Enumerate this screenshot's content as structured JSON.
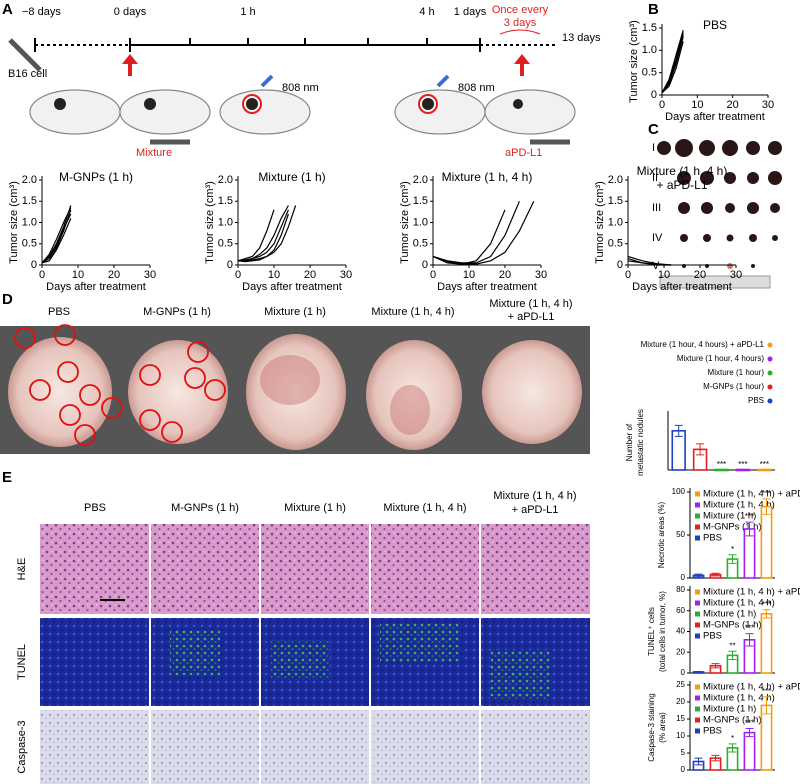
{
  "panels": [
    "A",
    "B",
    "C",
    "D",
    "E"
  ],
  "timeline": {
    "marks": [
      "−8 days",
      "0 days",
      "1 h",
      "4 h",
      "1 days",
      "13 days"
    ],
    "repeat": [
      "Once every",
      "3 days"
    ],
    "cell": "B16 cell",
    "laser": [
      "808 nm",
      "808 nm"
    ],
    "injection": "Mixture",
    "antibody": "aPD-L1"
  },
  "tumor_groups": [
    "I",
    "II",
    "III",
    "IV",
    "V"
  ],
  "lung_headers": [
    [
      "PBS"
    ],
    [
      "M-GNPs (1 h)"
    ],
    [
      "Mixture (1 h)"
    ],
    [
      "Mixture (1 h, 4 h)"
    ],
    [
      "Mixture (1 h, 4 h)",
      "+ aPD-L1"
    ]
  ],
  "histology": {
    "columns": [
      [
        "PBS"
      ],
      [
        "M-GNPs (1 h)"
      ],
      [
        "Mixture (1 h)"
      ],
      [
        "Mixture (1 h, 4 h)"
      ],
      [
        "Mixture (1 h, 4 h)",
        "+ aPD-L1"
      ]
    ],
    "rows": [
      "H&E",
      "TUNEL",
      "Caspase-3"
    ]
  },
  "chart_data": [
    {
      "type": "line",
      "title": [
        "PBS"
      ],
      "x_label": "Days after treatment",
      "y_label": [
        "Tumor size (cm³)"
      ],
      "color": "#000000",
      "x": [
        0,
        2,
        4,
        6
      ],
      "xlim": [
        0,
        30
      ],
      "xticks": [
        0,
        10,
        20,
        30
      ],
      "ylim": [
        0,
        1.5
      ],
      "yticks": [
        0,
        {
          "value": 0.5,
          "label": "0.5"
        },
        {
          "value": 1,
          "label": "1.0"
        },
        {
          "value": 1.5,
          "label": "1.5"
        }
      ],
      "series": [
        {
          "values": [
            0.05,
            0.3,
            0.8,
            1.4
          ]
        },
        {
          "values": [
            0.05,
            0.25,
            0.7,
            1.3
          ]
        },
        {
          "values": [
            0.05,
            0.35,
            0.9,
            1.45
          ]
        },
        {
          "values": [
            0.05,
            0.2,
            0.6,
            1.2
          ]
        },
        {
          "values": [
            0.05,
            0.3,
            0.75,
            1.35
          ]
        }
      ]
    },
    {
      "type": "line",
      "title": [
        "M-GNPs (1 h)"
      ],
      "x_label": "Days after treatment",
      "y_label": [
        "Tumor size (cm³)"
      ],
      "color": "#000000",
      "x": [
        0,
        2,
        4,
        6,
        8
      ],
      "xlim": [
        0,
        30
      ],
      "xticks": [
        0,
        10,
        20,
        30
      ],
      "ylim": [
        0,
        2
      ],
      "yticks": [
        0,
        {
          "value": 0.5,
          "label": "0.5"
        },
        {
          "value": 1,
          "label": "1.0"
        },
        {
          "value": 1.5,
          "label": "1.5"
        },
        {
          "value": 2,
          "label": "2.0"
        }
      ],
      "series": [
        {
          "values": [
            0.05,
            0.2,
            0.5,
            0.9,
            1.4
          ]
        },
        {
          "values": [
            0.05,
            0.15,
            0.4,
            0.8,
            1.3
          ]
        },
        {
          "values": [
            0.05,
            0.25,
            0.6,
            1.0,
            1.35
          ]
        },
        {
          "values": [
            0.05,
            0.2,
            0.45,
            0.85,
            1.2
          ]
        },
        {
          "values": [
            0.05,
            0.1,
            0.35,
            0.7,
            1.1
          ]
        }
      ]
    },
    {
      "type": "line",
      "title": [
        "Mixture (1 h)"
      ],
      "x_label": "Days after treatment",
      "y_label": [
        "Tumor size (cm³)"
      ],
      "color": "#000000",
      "x": [
        0,
        2,
        4,
        6,
        8,
        10,
        12,
        14,
        16
      ],
      "xlim": [
        0,
        30
      ],
      "xticks": [
        0,
        10,
        20,
        30
      ],
      "ylim": [
        0,
        2
      ],
      "yticks": [
        0,
        {
          "value": 0.5,
          "label": "0.5"
        },
        {
          "value": 1,
          "label": "1.0"
        },
        {
          "value": 1.5,
          "label": "1.5"
        },
        {
          "value": 2,
          "label": "2.0"
        }
      ],
      "series": [
        {
          "values": [
            0.1,
            0.15,
            0.2,
            0.4,
            0.8,
            1.3,
            null,
            null,
            null
          ]
        },
        {
          "values": [
            0.1,
            0.1,
            0.15,
            0.25,
            0.4,
            0.7,
            1.1,
            1.4,
            null
          ]
        },
        {
          "values": [
            0.1,
            0.12,
            0.15,
            0.2,
            0.3,
            0.5,
            0.9,
            1.3,
            null
          ]
        },
        {
          "values": [
            0.1,
            0.1,
            0.12,
            0.15,
            0.2,
            0.3,
            0.5,
            0.9,
            1.4
          ]
        },
        {
          "values": [
            0.1,
            0.08,
            0.1,
            0.12,
            0.2,
            0.35,
            0.7,
            1.2,
            null
          ]
        }
      ]
    },
    {
      "type": "line",
      "title": [
        "Mixture (1 h, 4 h)"
      ],
      "x_label": "Days after treatment",
      "y_label": [
        "Tumor size (cm³)"
      ],
      "color": "#000000",
      "x": [
        0,
        4,
        8,
        12,
        16,
        20,
        24,
        28
      ],
      "xlim": [
        0,
        30
      ],
      "xticks": [
        0,
        10,
        20,
        30
      ],
      "ylim": [
        0,
        2
      ],
      "yticks": [
        0,
        {
          "value": 0.5,
          "label": "0.5"
        },
        {
          "value": 1,
          "label": "1.0"
        },
        {
          "value": 1.5,
          "label": "1.5"
        },
        {
          "value": 2,
          "label": "2.0"
        }
      ],
      "series": [
        {
          "values": [
            0.2,
            0.05,
            0.02,
            0.1,
            0.5,
            1.3,
            null,
            null
          ]
        },
        {
          "values": [
            0.2,
            0.1,
            0.05,
            0.05,
            0.2,
            0.7,
            1.5,
            null
          ]
        },
        {
          "values": [
            0.2,
            0.08,
            0.02,
            0.02,
            0.1,
            0.3,
            0.8,
            1.5
          ]
        }
      ]
    },
    {
      "type": "line",
      "title": [
        "Mixture (1 h, 4 h)",
        "+ aPD-L1"
      ],
      "x_label": "Days after treatment",
      "y_label": [
        "Tumor size (cm³)"
      ],
      "color": "#000000",
      "x": [
        0,
        4,
        8,
        12
      ],
      "xlim": [
        0,
        30
      ],
      "xticks": [
        0,
        10,
        20,
        30
      ],
      "ylim": [
        0,
        2
      ],
      "yticks": [
        0,
        {
          "value": 0.5,
          "label": "0.5"
        },
        {
          "value": 1,
          "label": "1.0"
        },
        {
          "value": 1.5,
          "label": "1.5"
        },
        {
          "value": 2,
          "label": "2.0"
        }
      ],
      "series": [
        {
          "values": [
            0.2,
            0.1,
            0.03,
            0
          ]
        },
        {
          "values": [
            0.15,
            0.05,
            0.02,
            0
          ]
        },
        {
          "values": [
            0.1,
            0.05,
            0,
            0
          ]
        }
      ]
    },
    {
      "type": "bar",
      "legend_side": "right",
      "y_label": [
        "Number of",
        "metastatic nodules"
      ],
      "ylim": [
        0,
        8
      ],
      "series": [
        {
          "name": "PBS",
          "color": "#1f3fbf",
          "values": [
            5.7
          ],
          "errors": [
            0.8
          ]
        },
        {
          "name": "M-GNPs (1 hour)",
          "color": "#e32020",
          "values": [
            3
          ],
          "errors": [
            0.8
          ]
        },
        {
          "name": "Mixture (1 hour)",
          "color": "#2ab02a",
          "values": [
            0
          ],
          "errors": [
            0
          ]
        },
        {
          "name": "Mixture (1 hour, 4 hours)",
          "color": "#a020f0",
          "values": [
            0
          ],
          "errors": [
            0
          ]
        },
        {
          "name": "Mixture (1 hour, 4 hours) + aPD-L1",
          "color": "#f39c12",
          "values": [
            0
          ],
          "errors": [
            0
          ]
        }
      ],
      "annotations": [
        null,
        null,
        "***",
        "***",
        "***"
      ]
    },
    {
      "type": "bar",
      "legend_side": "left",
      "y_label": [
        "Necrotic areas (%)"
      ],
      "ylim": [
        0,
        100
      ],
      "yticks": [
        0,
        50,
        100
      ],
      "series": [
        {
          "name": "PBS",
          "color": "#1f3fbf",
          "values": [
            3
          ],
          "errors": [
            1.5
          ]
        },
        {
          "name": "M-GNPs (1 h)",
          "color": "#e32020",
          "values": [
            4
          ],
          "errors": [
            1.5
          ]
        },
        {
          "name": "Mixture (1 h)",
          "color": "#2ab02a",
          "values": [
            22
          ],
          "errors": [
            5
          ]
        },
        {
          "name": "Mixture (1 h, 4 h)",
          "color": "#a020f0",
          "values": [
            57
          ],
          "errors": [
            8
          ]
        },
        {
          "name": "Mixture (1 h, 4 h) + aPD-L1",
          "color": "#f39c12",
          "values": [
            83
          ],
          "errors": [
            9
          ]
        }
      ],
      "annotations": [
        null,
        null,
        "*",
        "***",
        "***"
      ]
    },
    {
      "type": "bar",
      "legend_side": "left",
      "y_label": [
        "TUNEL⁺ cells",
        "(total cells in tumor, %)"
      ],
      "ylim": [
        0,
        80
      ],
      "yticks": [
        0,
        20,
        40,
        60,
        80
      ],
      "series": [
        {
          "name": "PBS",
          "color": "#1f3fbf",
          "values": [
            1
          ],
          "errors": [
            0.5
          ]
        },
        {
          "name": "M-GNPs (1 h)",
          "color": "#e32020",
          "values": [
            7
          ],
          "errors": [
            2
          ]
        },
        {
          "name": "Mixture (1 h)",
          "color": "#2ab02a",
          "values": [
            17
          ],
          "errors": [
            4
          ]
        },
        {
          "name": "Mixture (1 h, 4 h)",
          "color": "#a020f0",
          "values": [
            32
          ],
          "errors": [
            6
          ]
        },
        {
          "name": "Mixture (1 h, 4 h) + aPD-L1",
          "color": "#f39c12",
          "values": [
            57
          ],
          "errors": [
            4
          ]
        }
      ],
      "annotations": [
        null,
        null,
        "**",
        "***",
        "***"
      ]
    },
    {
      "type": "bar",
      "legend_side": "left",
      "y_label": [
        "Caspase-3 staining",
        "(% area)"
      ],
      "ylim": [
        0,
        25
      ],
      "yticks": [
        0,
        5,
        10,
        15,
        20,
        25
      ],
      "series": [
        {
          "name": "PBS",
          "color": "#1f3fbf",
          "values": [
            2.5
          ],
          "errors": [
            1
          ]
        },
        {
          "name": "M-GNPs (1 h)",
          "color": "#e32020",
          "values": [
            3.5
          ],
          "errors": [
            0.8
          ]
        },
        {
          "name": "Mixture (1 h)",
          "color": "#2ab02a",
          "values": [
            6.5
          ],
          "errors": [
            1.2
          ]
        },
        {
          "name": "Mixture (1 h, 4 h)",
          "color": "#a020f0",
          "values": [
            11
          ],
          "errors": [
            1.2
          ]
        },
        {
          "name": "Mixture (1 h, 4 h) + aPD-L1",
          "color": "#f39c12",
          "values": [
            19
          ],
          "errors": [
            2.5
          ]
        }
      ],
      "annotations": [
        null,
        null,
        "*",
        "***",
        "***"
      ]
    }
  ]
}
